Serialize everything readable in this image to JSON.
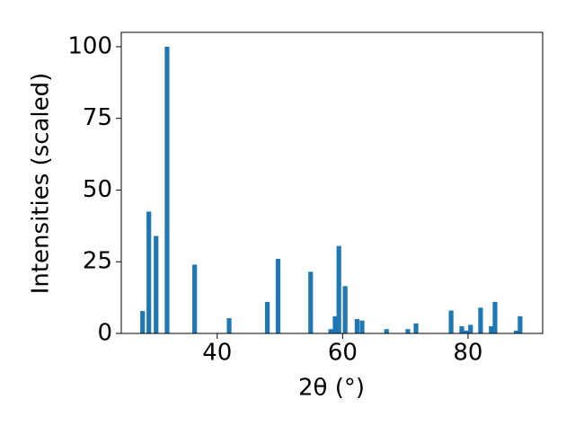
{
  "chart_data": {
    "type": "bar",
    "x_label": "2θ (°)",
    "y_label": "Intensities (scaled)",
    "x": [
      28.1,
      29.1,
      30.25,
      32.0,
      36.4,
      41.9,
      48.0,
      49.7,
      54.9,
      58.1,
      58.8,
      59.4,
      60.4,
      62.3,
      63.1,
      67.0,
      70.4,
      71.7,
      77.3,
      79.0,
      79.7,
      80.4,
      82.0,
      83.7,
      84.3,
      87.7,
      88.3
    ],
    "values": [
      7.8,
      42.5,
      34,
      100,
      24,
      5.3,
      11,
      26,
      21.5,
      1.5,
      6,
      30.5,
      16.5,
      5,
      4.5,
      1.5,
      1.5,
      3.5,
      8,
      2.5,
      1,
      3,
      9,
      2.5,
      11,
      1,
      6
    ],
    "color": "#1f77b4",
    "xlim": [
      24.7,
      91.9
    ],
    "ylim": [
      0,
      105
    ],
    "xticks": [
      40,
      60,
      80
    ],
    "yticks": [
      0,
      25,
      50,
      75,
      100
    ],
    "grid": false
  }
}
